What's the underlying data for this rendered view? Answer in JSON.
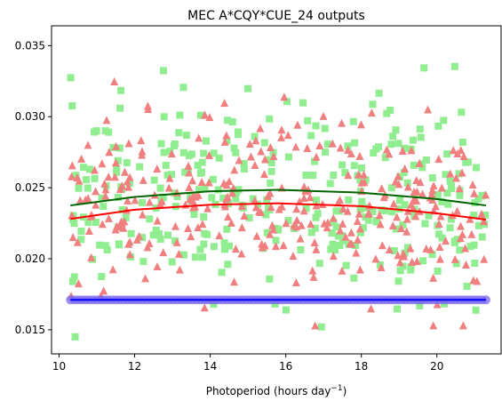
{
  "chart_data": {
    "type": "scatter",
    "title": "MEC A*CQY*CUE_24 outputs",
    "xlabel": "Photoperiod (hours day",
    "xlabel_superscript": "−1",
    "xlabel_suffix": ")",
    "ylabel": "",
    "xlim": [
      9.8,
      21.7
    ],
    "ylim": [
      0.0133,
      0.0364
    ],
    "xticks": [
      10,
      12,
      14,
      16,
      18,
      20
    ],
    "yticks": [
      0.015,
      0.02,
      0.025,
      0.03,
      0.035
    ],
    "ytick_labels": [
      "0.015",
      "0.020",
      "0.025",
      "0.030",
      "0.035"
    ],
    "grid": false,
    "colors": {
      "square": "#90ee90",
      "triangle": "#f08080",
      "circle": "#7b68ee",
      "square_fit": "#006400",
      "triangle_fit": "#ff0000",
      "circle_fit": "#0000ff"
    },
    "series": [
      {
        "marker": "square",
        "color": "#90ee90",
        "spread": {
          "x_range": [
            10.3,
            21.3
          ],
          "y_center_fit": "square_fit",
          "y_sd": 0.0033,
          "y_range": [
            0.0145,
            0.0352
          ],
          "n": 330
        }
      },
      {
        "marker": "triangle",
        "color": "#f08080",
        "spread": {
          "x_range": [
            10.3,
            21.3
          ],
          "y_center_fit": "triangle_fit",
          "y_sd": 0.003,
          "y_range": [
            0.0143,
            0.0338
          ],
          "n": 330
        }
      },
      {
        "marker": "circle",
        "color": "#7b68ee",
        "value": 0.0171,
        "x_range": [
          10.3,
          21.3
        ],
        "n": 110
      }
    ],
    "fits": [
      {
        "name": "square_fit",
        "color": "#006400",
        "x": [
          10.3,
          12.0,
          14.0,
          15.8,
          18.0,
          20.0,
          21.3
        ],
        "y": [
          0.02375,
          0.02435,
          0.02475,
          0.02485,
          0.02465,
          0.0242,
          0.02375
        ]
      },
      {
        "name": "triangle_fit",
        "color": "#ff0000",
        "x": [
          10.3,
          12.0,
          14.0,
          15.8,
          18.0,
          20.0,
          21.3
        ],
        "y": [
          0.0228,
          0.02345,
          0.0238,
          0.0239,
          0.0237,
          0.0232,
          0.02275
        ]
      },
      {
        "name": "circle_fit",
        "color": "#0000ff",
        "x": [
          10.3,
          21.3
        ],
        "y": [
          0.0171,
          0.0171
        ]
      }
    ]
  }
}
